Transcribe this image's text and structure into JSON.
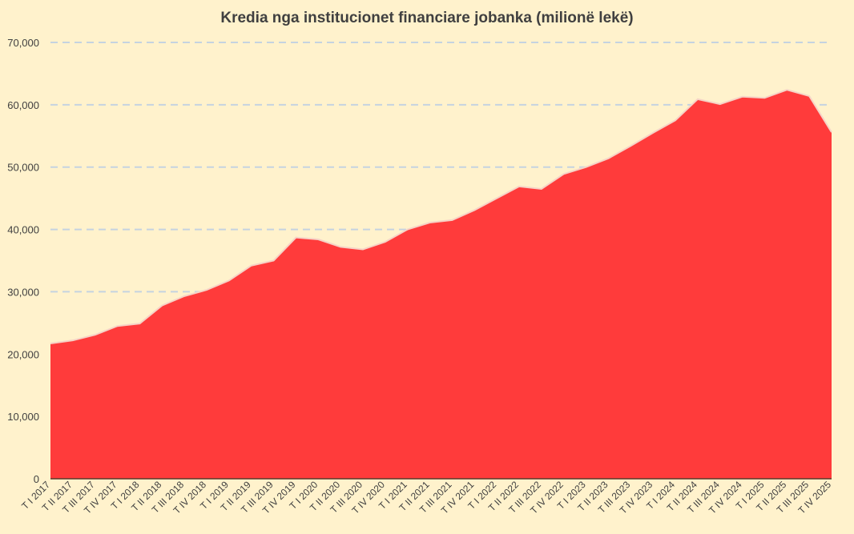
{
  "chart_data": {
    "type": "area",
    "title": "Kredia nga institucionet financiare jobanka (milionë lekë)",
    "xlabel": "",
    "ylabel": "",
    "ylim": [
      0,
      70000
    ],
    "yticks": [
      "0",
      "10,000",
      "20,000",
      "30,000",
      "40,000",
      "50,000",
      "60,000",
      "70,000"
    ],
    "grid": true,
    "legend": "none",
    "colors": {
      "area": "#FF3B3B",
      "outline": "#F6D3C6",
      "grid": "#C5D3E0",
      "background": "#FFF2CC",
      "text": "#404040"
    },
    "categories": [
      "T I 2017",
      "T II 2017",
      "T III 2017",
      "T IV 2017",
      "T I 2018",
      "T II 2018",
      "T III 2018",
      "T IV 2018",
      "T I 2019",
      "T II 2019",
      "T III 2019",
      "T IV 2019",
      "T I 2020",
      "T II 2020",
      "T III 2020",
      "T IV 2020",
      "T I 2021",
      "T II 2021",
      "T III 2021",
      "T IV 2021",
      "T I 2022",
      "T II 2022",
      "T III 2022",
      "T IV 2022",
      "T I 2023",
      "T II 2023",
      "T III 2023",
      "T IV 2023",
      "T I 2024",
      "T II 2024",
      "T III 2024",
      "T IV 2024",
      "T I 2025",
      "T II 2025",
      "T III 2025",
      "T IV 2025"
    ],
    "series": [
      {
        "values": [
          21700,
          22200,
          23100,
          24500,
          24900,
          27800,
          29300,
          30300,
          31800,
          34200,
          35000,
          38700,
          38400,
          37200,
          36800,
          38000,
          40000,
          41100,
          41500,
          43100,
          45000,
          46900,
          46500,
          48900,
          50000,
          51400,
          53400,
          55500,
          57500,
          60900,
          60100,
          61300,
          61100,
          62400,
          61400,
          55600
        ]
      }
    ]
  }
}
